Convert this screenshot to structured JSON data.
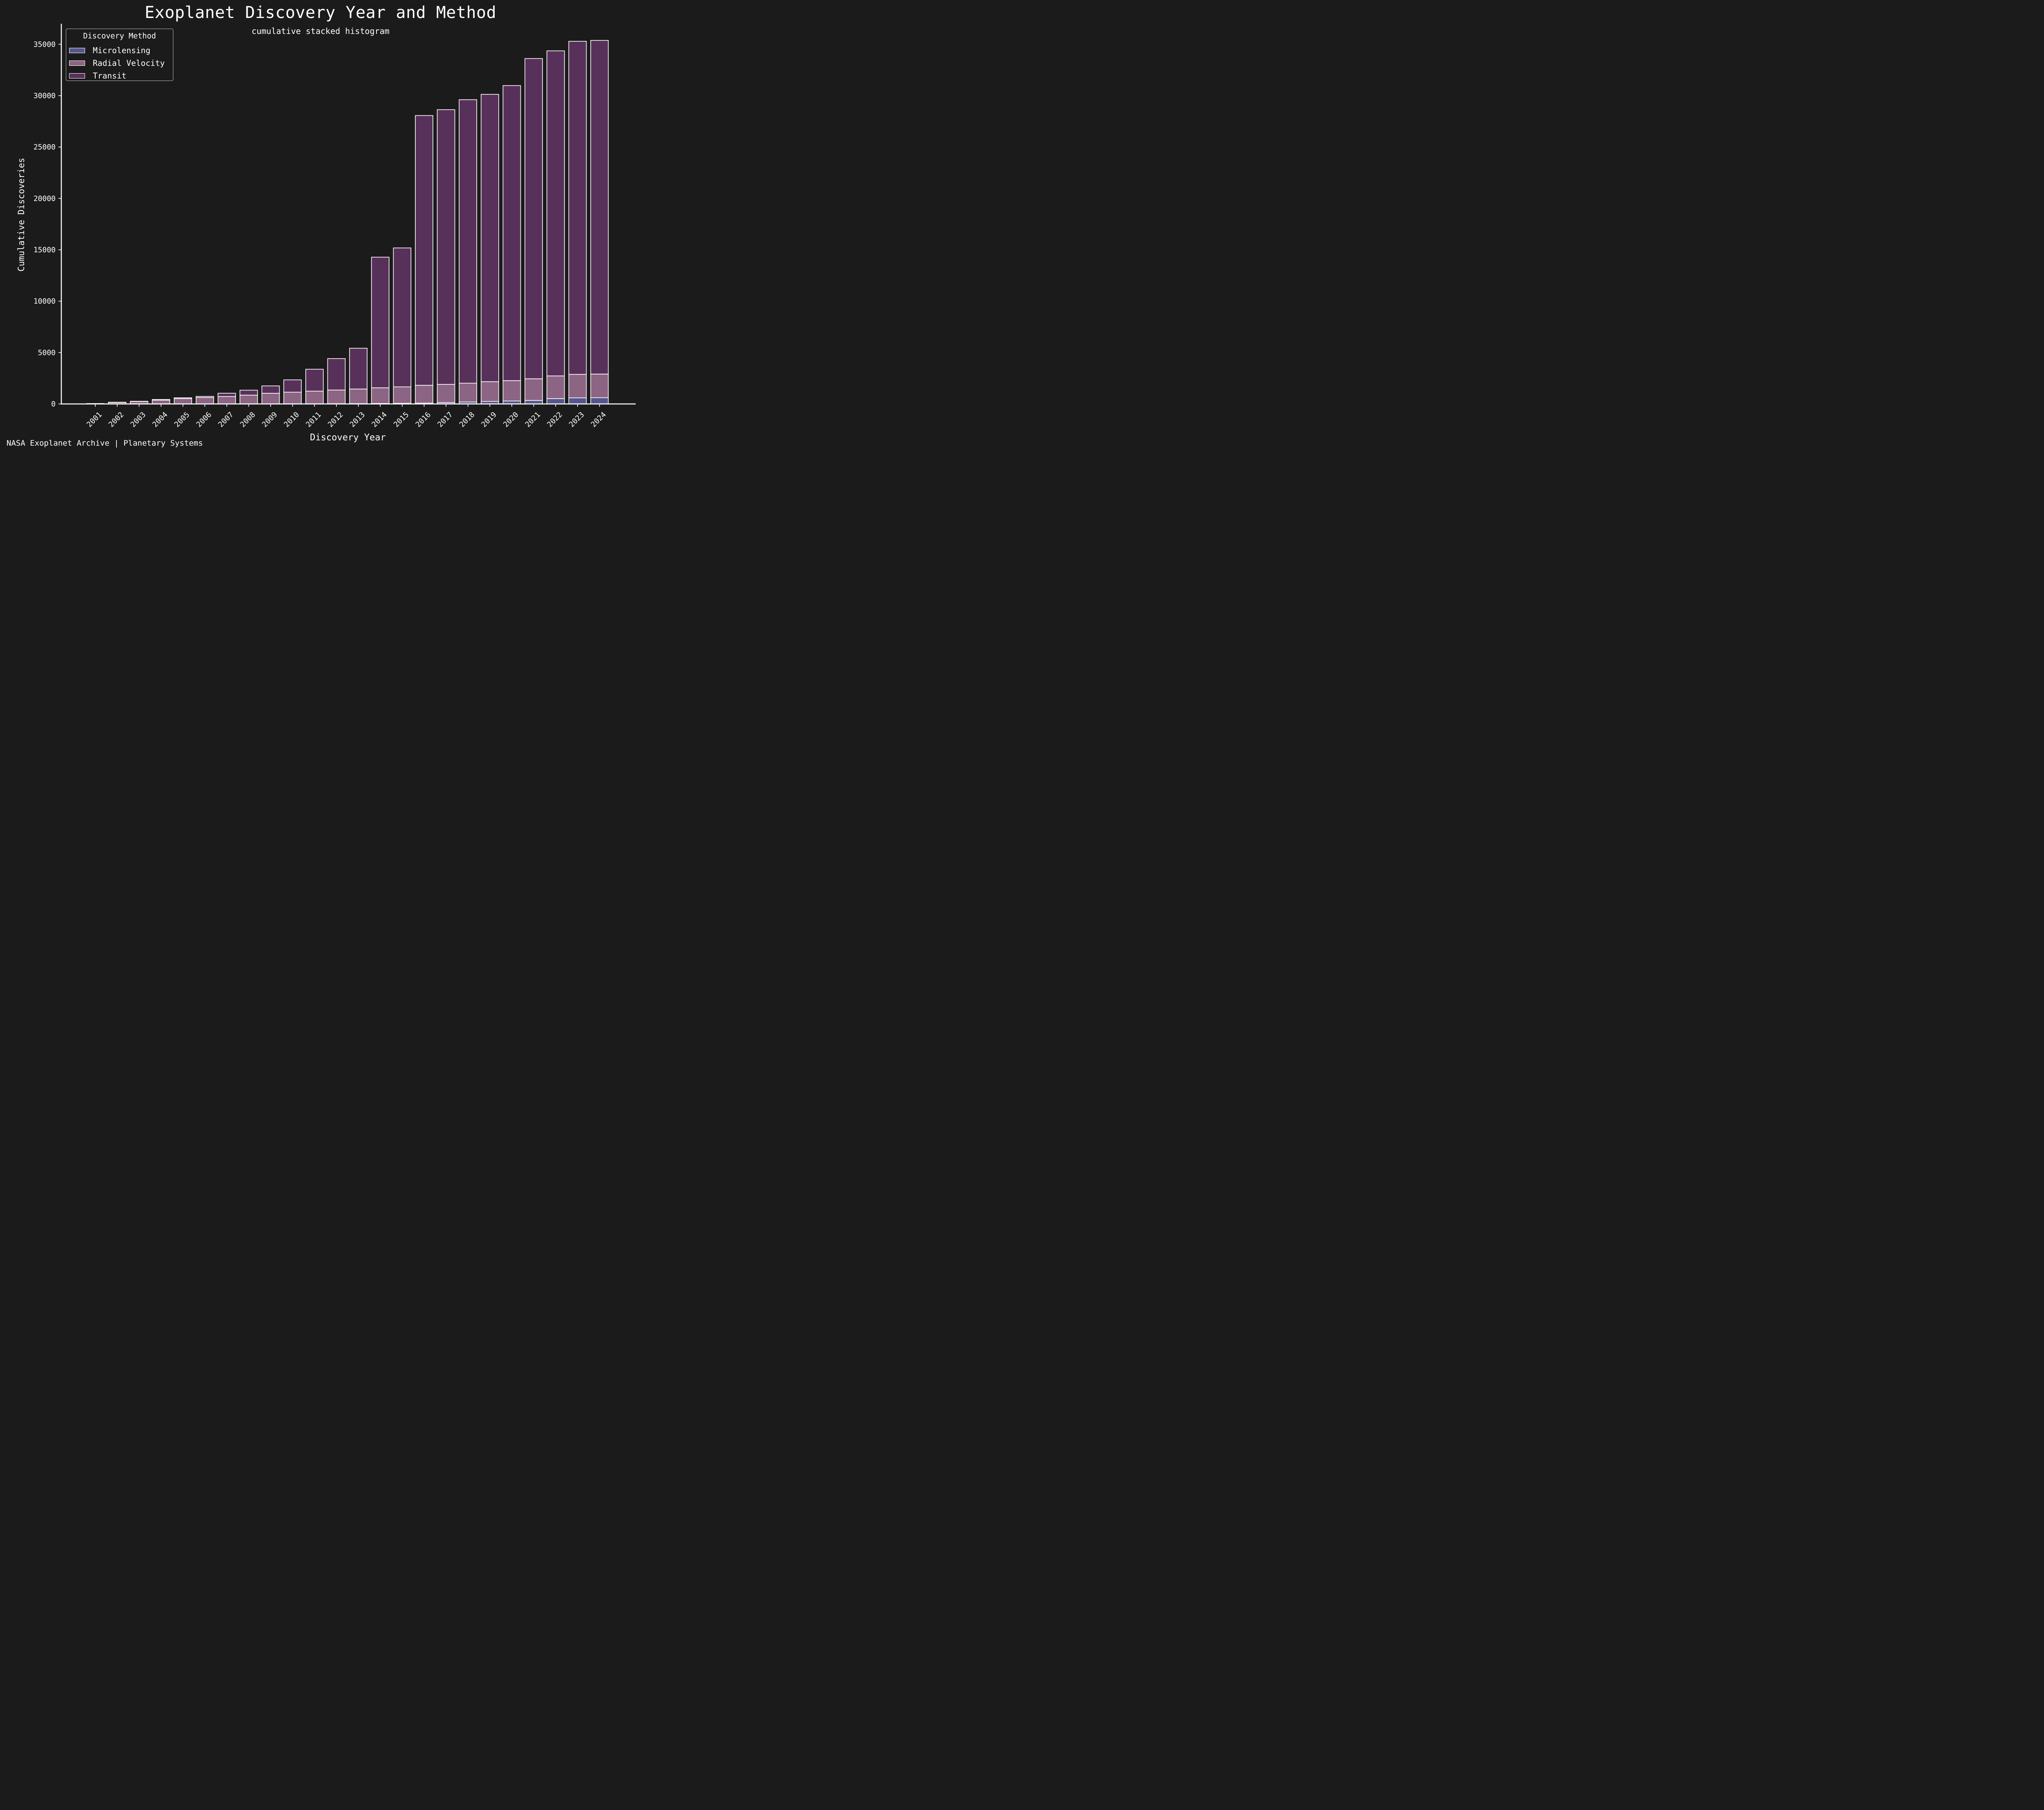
{
  "title": "Exoplanet Discovery Year and Method",
  "subtitle": "cumulative stacked histogram",
  "source_note": "NASA Exoplanet Archive | Planetary Systems",
  "legend": {
    "title": "Discovery Method",
    "items": [
      {
        "label": "Microlensing",
        "color": "#56568e"
      },
      {
        "label": "Radial Velocity",
        "color": "#8c6484"
      },
      {
        "label": "Transit",
        "color": "#58315a"
      }
    ]
  },
  "colors": {
    "background": "#1b1b1b",
    "axis": "#ffffff",
    "bar_edge": "#ffffff"
  },
  "chart_data": {
    "type": "bar",
    "stacked": true,
    "title": "Exoplanet Discovery Year and Method",
    "subtitle": "cumulative stacked histogram",
    "xlabel": "Discovery Year",
    "ylabel": "Cumulative Discoveries",
    "ylim": [
      0,
      37000
    ],
    "yticks": [
      0,
      5000,
      10000,
      15000,
      20000,
      25000,
      30000,
      35000
    ],
    "grid": false,
    "legend_position": "top-left",
    "categories": [
      "2001",
      "2002",
      "2003",
      "2004",
      "2005",
      "2006",
      "2007",
      "2008",
      "2009",
      "2010",
      "2011",
      "2012",
      "2013",
      "2014",
      "2015",
      "2016",
      "2017",
      "2018",
      "2019",
      "2020",
      "2021",
      "2022",
      "2023",
      "2024"
    ],
    "series": [
      {
        "name": "Microlensing",
        "color": "#56568e",
        "values": [
          0,
          0,
          0,
          2,
          4,
          5,
          6,
          8,
          10,
          14,
          18,
          24,
          33,
          45,
          62,
          85,
          135,
          190,
          250,
          290,
          340,
          520,
          590,
          610
        ]
      },
      {
        "name": "Radial Velocity",
        "color": "#8c6484",
        "values": [
          40,
          150,
          240,
          370,
          520,
          620,
          720,
          850,
          1030,
          1130,
          1230,
          1330,
          1420,
          1530,
          1600,
          1730,
          1770,
          1830,
          1920,
          1980,
          2110,
          2210,
          2290,
          2300
        ]
      },
      {
        "name": "Transit",
        "color": "#58315a",
        "values": [
          0,
          20,
          20,
          60,
          80,
          110,
          320,
          480,
          720,
          1200,
          2130,
          3060,
          3970,
          12710,
          13520,
          26250,
          26730,
          27590,
          27960,
          28710,
          31160,
          31630,
          32410,
          32470
        ]
      }
    ],
    "totals": [
      40,
      170,
      260,
      432,
      604,
      735,
      1046,
      1338,
      1760,
      2344,
      3378,
      4414,
      5423,
      14285,
      15182,
      28065,
      28635,
      29610,
      30130,
      30980,
      33610,
      34360,
      35290,
      35380
    ]
  }
}
